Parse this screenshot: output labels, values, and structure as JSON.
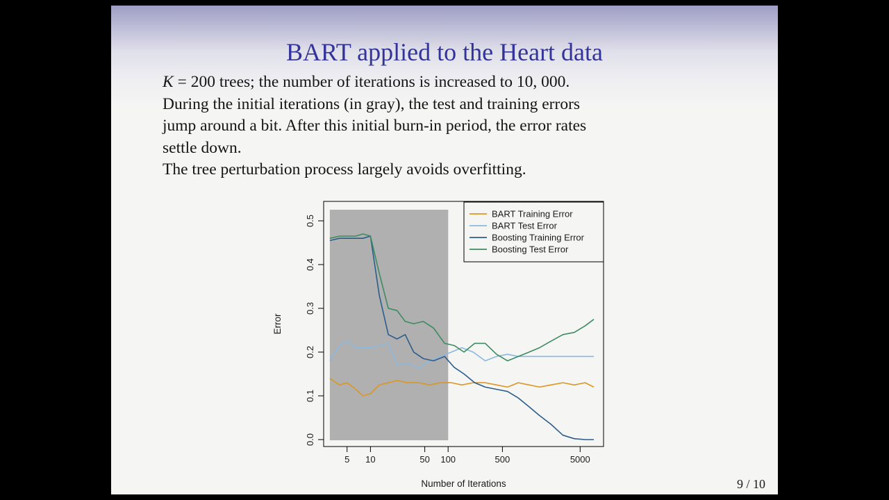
{
  "slide": {
    "title": "BART applied to the Heart data",
    "title_color": "#33339b",
    "body_lines": [
      "K = 200 trees; the number of iterations is increased to 10, 000.",
      "During the initial iterations (in gray), the test and training errors",
      "jump around a bit. After this initial burn-in period, the error rates",
      "settle down.",
      "The tree perturbation process largely avoids overfitting."
    ],
    "page_number": "9 / 10"
  },
  "chart_data": {
    "type": "line",
    "x_scale": "log",
    "xlabel": "Number of Iterations",
    "ylabel": "Error",
    "xlim": [
      2.5,
      10000
    ],
    "ylim": [
      0,
      0.5
    ],
    "x_ticks": [
      5,
      10,
      50,
      100,
      500,
      5000
    ],
    "y_ticks": [
      0.0,
      0.1,
      0.2,
      0.3,
      0.4,
      0.5
    ],
    "grid": false,
    "legend_position": "top-right",
    "burn_in_region": {
      "x_start": 3,
      "x_end": 100,
      "color": "#b0b0b0"
    },
    "series": [
      {
        "name": "BART Training Error",
        "color": "#dc961e",
        "x": [
          3,
          4,
          5,
          6.5,
          8,
          10,
          13,
          17,
          22,
          30,
          42,
          58,
          80,
          110,
          150,
          210,
          300,
          420,
          580,
          800,
          1100,
          1500,
          2100,
          3000,
          4200,
          5800,
          7500
        ],
        "y": [
          0.14,
          0.125,
          0.13,
          0.115,
          0.1,
          0.105,
          0.125,
          0.13,
          0.135,
          0.13,
          0.13,
          0.125,
          0.13,
          0.13,
          0.125,
          0.13,
          0.13,
          0.125,
          0.12,
          0.13,
          0.125,
          0.12,
          0.125,
          0.13,
          0.125,
          0.13,
          0.12
        ]
      },
      {
        "name": "BART Test Error",
        "color": "#8cb8de",
        "x": [
          3,
          4,
          5,
          6.5,
          8,
          10,
          13,
          17,
          22,
          30,
          42,
          58,
          80,
          110,
          150,
          210,
          300,
          420,
          580,
          800,
          1100,
          1500,
          2100,
          3000,
          4200,
          5800,
          7500
        ],
        "y": [
          0.18,
          0.215,
          0.225,
          0.21,
          0.21,
          0.21,
          0.215,
          0.22,
          0.17,
          0.175,
          0.163,
          0.18,
          0.19,
          0.2,
          0.21,
          0.2,
          0.18,
          0.19,
          0.195,
          0.19,
          0.19,
          0.19,
          0.19,
          0.19,
          0.19,
          0.19,
          0.19
        ]
      },
      {
        "name": "Boosting Training Error",
        "color": "#2c5d8a",
        "x": [
          3,
          4,
          5,
          6.5,
          8,
          10,
          13,
          17,
          22,
          28,
          36,
          48,
          65,
          90,
          120,
          160,
          220,
          300,
          420,
          580,
          800,
          1100,
          1500,
          2100,
          3000,
          4200,
          5800,
          7500
        ],
        "y": [
          0.455,
          0.46,
          0.46,
          0.46,
          0.46,
          0.465,
          0.33,
          0.24,
          0.23,
          0.24,
          0.2,
          0.185,
          0.18,
          0.19,
          0.165,
          0.15,
          0.13,
          0.12,
          0.115,
          0.11,
          0.095,
          0.075,
          0.055,
          0.035,
          0.01,
          0.002,
          0.0,
          0.0
        ]
      },
      {
        "name": "Boosting Test Error",
        "color": "#3d8b63",
        "x": [
          3,
          4,
          5,
          6.5,
          8,
          10,
          13,
          17,
          22,
          28,
          36,
          48,
          65,
          90,
          120,
          160,
          220,
          300,
          420,
          580,
          800,
          1100,
          1500,
          2100,
          3000,
          4200,
          5800,
          7500
        ],
        "y": [
          0.46,
          0.465,
          0.465,
          0.465,
          0.47,
          0.465,
          0.38,
          0.3,
          0.295,
          0.27,
          0.265,
          0.27,
          0.255,
          0.22,
          0.215,
          0.2,
          0.22,
          0.22,
          0.195,
          0.18,
          0.19,
          0.2,
          0.21,
          0.225,
          0.24,
          0.245,
          0.26,
          0.275
        ]
      }
    ]
  }
}
